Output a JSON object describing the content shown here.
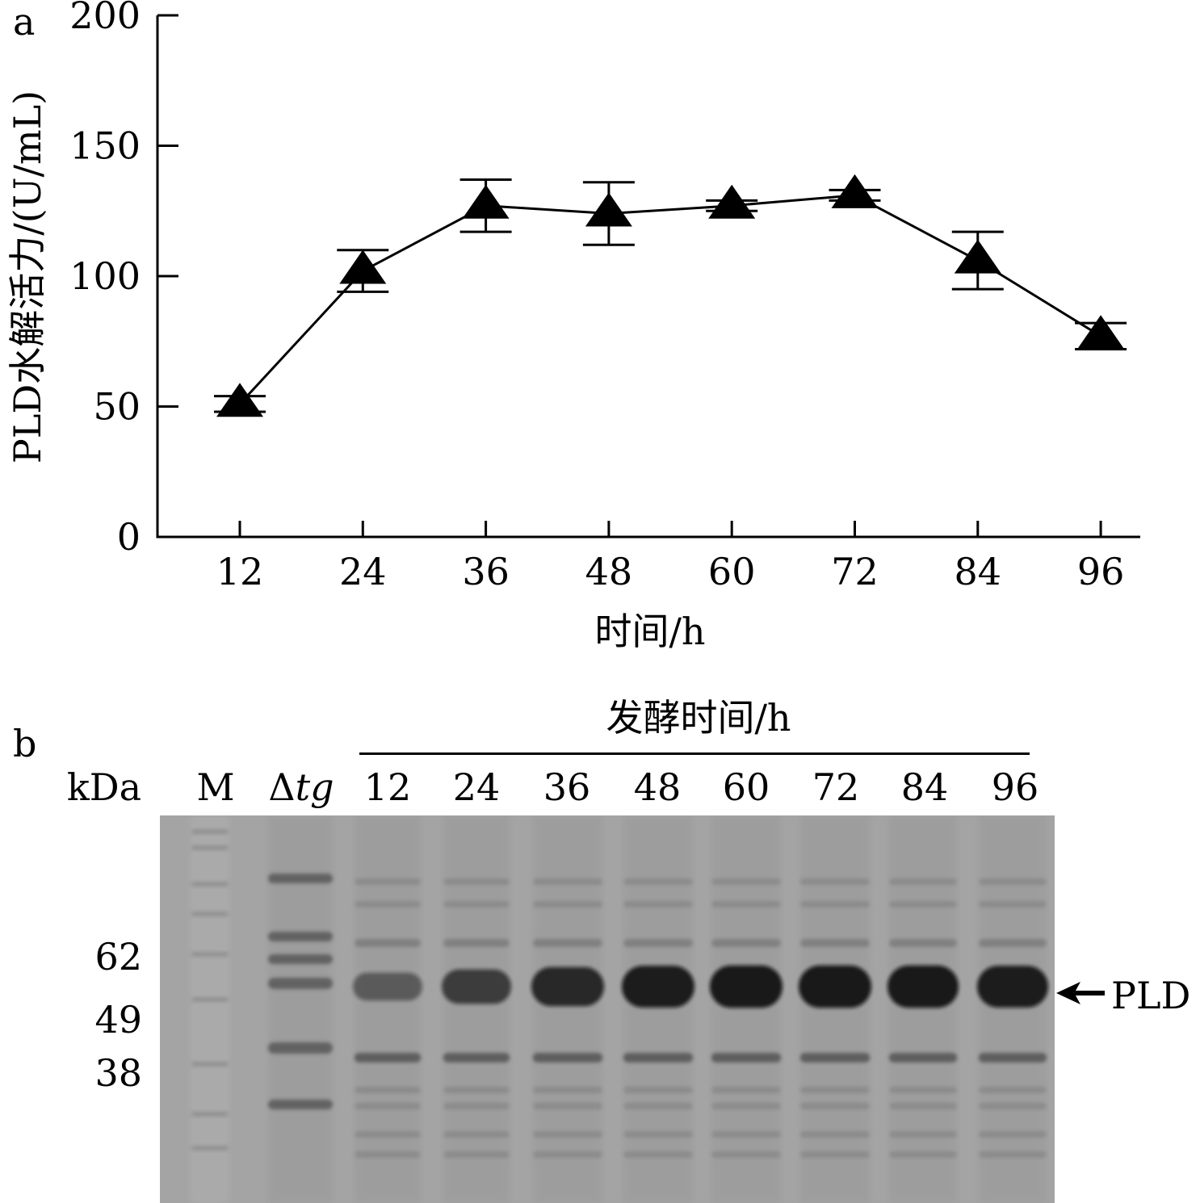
{
  "panel_a": {
    "letter": "a",
    "chart_data": {
      "type": "line",
      "xlabel": "时间/h",
      "ylabel": "PLD水解活力/(U/mL)",
      "categories": [
        "12",
        "24",
        "36",
        "48",
        "60",
        "72",
        "84",
        "96"
      ],
      "x": [
        12,
        24,
        36,
        48,
        60,
        72,
        84,
        96
      ],
      "ylim": [
        0,
        200
      ],
      "yticks": [
        0,
        50,
        100,
        150,
        200
      ],
      "series": [
        {
          "marker": "filled-triangle",
          "values": [
            51,
            102,
            127,
            124,
            127,
            131,
            106,
            77
          ],
          "error": [
            3,
            8,
            10,
            12,
            2,
            2,
            11,
            5
          ]
        }
      ],
      "grid": false,
      "color": "#000000"
    }
  },
  "panel_b": {
    "letter": "b",
    "group_label": "发酵时间/h",
    "unit_label": "kDa",
    "lanes": {
      "marker": "M",
      "control_symbol": "Δ",
      "control_italic": "tg",
      "samples": [
        "12",
        "24",
        "36",
        "48",
        "60",
        "72",
        "84",
        "96"
      ]
    },
    "mw_labels": [
      "62",
      "49",
      "38"
    ],
    "band_label": "PLD",
    "arrow_icon": "left-arrow-icon",
    "pld_band_intensity": [
      0.3,
      0.6,
      0.8,
      0.92,
      0.95,
      0.95,
      0.95,
      0.92
    ]
  }
}
